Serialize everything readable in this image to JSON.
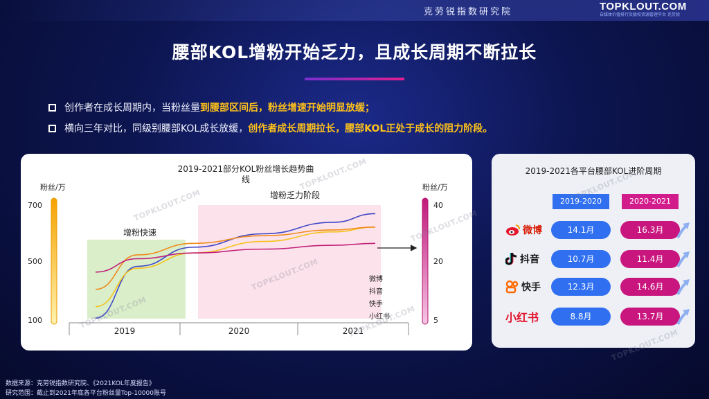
{
  "header": {
    "org_name": "克劳锐指数研究院",
    "brand": "TOPKLOUT.COM",
    "brand_sub": "自媒体价值排行及版权资源管理平台 克劳锐"
  },
  "page_title": "腰部KOL增粉开始乏力，且成长周期不断拉长",
  "bullets": [
    {
      "prefix": "创作者在成长周期内，当粉丝量",
      "highlight": "到腰部区间后，粉丝增速开始明显放缓；"
    },
    {
      "prefix": "横向三年对比，同级别腰部KOL成长放缓，",
      "highlight": "创作者成长周期拉长，腰部KOL正处于成长的阻力阶段。"
    }
  ],
  "chart_data": [
    {
      "type": "line",
      "title": "2019-2021部分KOL粉丝增长趋势曲线",
      "x_ticks": [
        "2019",
        "2020",
        "2021"
      ],
      "left_axis": {
        "label": "粉丝/万",
        "ticks": [
          700,
          500,
          100
        ]
      },
      "right_axis": {
        "label": "粉丝/万",
        "ticks": [
          40,
          20,
          5
        ]
      },
      "regions": [
        {
          "label": "增粉快速",
          "color": "#d6ecc4"
        },
        {
          "label": "增粉乏力阶段",
          "color": "#fbdde6"
        }
      ],
      "series": [
        {
          "name": "微博",
          "color": "#3f47c8",
          "x": [
            0.0,
            0.15,
            0.35,
            0.6,
            0.85,
            1.0
          ],
          "y": [
            110,
            380,
            480,
            550,
            610,
            655
          ]
        },
        {
          "name": "抖音",
          "color": "#f5c21a",
          "x": [
            0.0,
            0.15,
            0.35,
            0.6,
            0.85,
            1.0
          ],
          "y": [
            170,
            370,
            450,
            510,
            560,
            585
          ]
        },
        {
          "name": "快手",
          "color": "#f08a1c",
          "x": [
            0.0,
            0.15,
            0.35,
            0.6,
            0.85,
            1.0
          ],
          "y": [
            260,
            440,
            500,
            540,
            570,
            585
          ]
        },
        {
          "name": "小红书",
          "color": "#c0217a",
          "x": [
            0.0,
            0.15,
            0.35,
            0.6,
            0.85,
            1.0
          ],
          "y": [
            350,
            420,
            450,
            470,
            490,
            500
          ]
        }
      ]
    },
    {
      "type": "table",
      "title": "2019-2021各平台腰部KOL进阶周期",
      "columns": [
        "2019-2020",
        "2020-2021"
      ],
      "rows": [
        {
          "platform": "微博",
          "v2019_2020": "14.1月",
          "v2020_2021": "16.3月"
        },
        {
          "platform": "抖音",
          "v2019_2020": "10.7月",
          "v2020_2021": "11.4月"
        },
        {
          "platform": "快手",
          "v2019_2020": "12.3月",
          "v2020_2021": "14.6月"
        },
        {
          "platform": "小红书",
          "v2019_2020": "8.8月",
          "v2020_2021": "13.7月"
        }
      ]
    }
  ],
  "watermark": "TOPKLOUT.COM",
  "footer": {
    "source": "数据来源：克劳锐指数研究院、《2021KOL年度报告》",
    "scope": "研究范围：截止到2021年底各平台粉丝量Top-10000账号"
  },
  "colors": {
    "accent_blue": "#2f6ff0",
    "accent_magenta": "#c8167e",
    "highlight": "#ffc21a"
  }
}
